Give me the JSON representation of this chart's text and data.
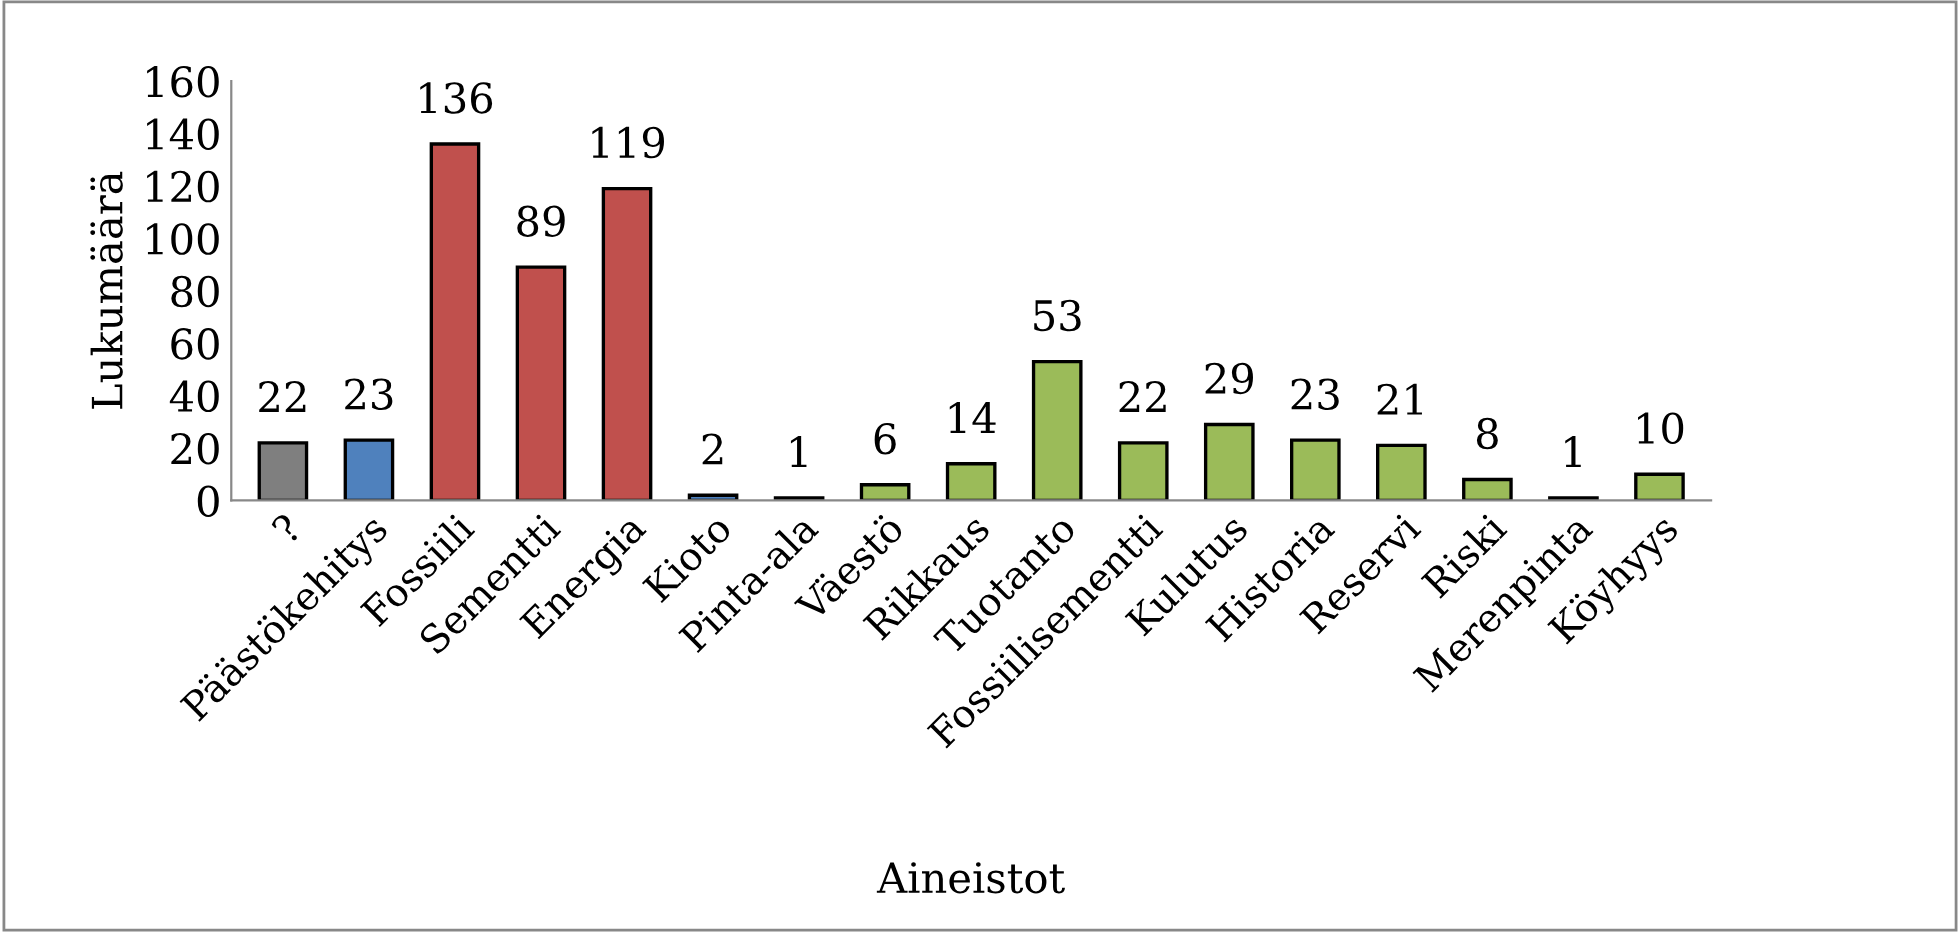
{
  "chart_data": {
    "type": "bar",
    "xlabel": "Aineistot",
    "ylabel": "Lukumäärä",
    "categories": [
      "?",
      "Päästökehitys",
      "Fossiili",
      "Sementti",
      "Energia",
      "Kioto",
      "Pinta-ala",
      "Väestö",
      "Rikkaus",
      "Tuotanto",
      "Fossiilisementti",
      "Kulutus",
      "Historia",
      "Reservi",
      "Riski",
      "Merenpinta",
      "Köyhyys"
    ],
    "values": [
      22,
      23,
      136,
      89,
      119,
      2,
      1,
      6,
      14,
      53,
      22,
      29,
      23,
      21,
      8,
      1,
      10
    ],
    "colors": [
      "#7f7f7f",
      "#4f81bd",
      "#c0504d",
      "#c0504d",
      "#c0504d",
      "#4f81bd",
      "#4f81bd",
      "#9bbb59",
      "#9bbb59",
      "#9bbb59",
      "#9bbb59",
      "#9bbb59",
      "#9bbb59",
      "#9bbb59",
      "#9bbb59",
      "#9bbb59",
      "#9bbb59"
    ],
    "ylim": [
      0,
      160
    ],
    "yticks": [
      0,
      20,
      40,
      60,
      80,
      100,
      120,
      140,
      160
    ],
    "data_labels": true,
    "grid": false,
    "legend": false
  }
}
